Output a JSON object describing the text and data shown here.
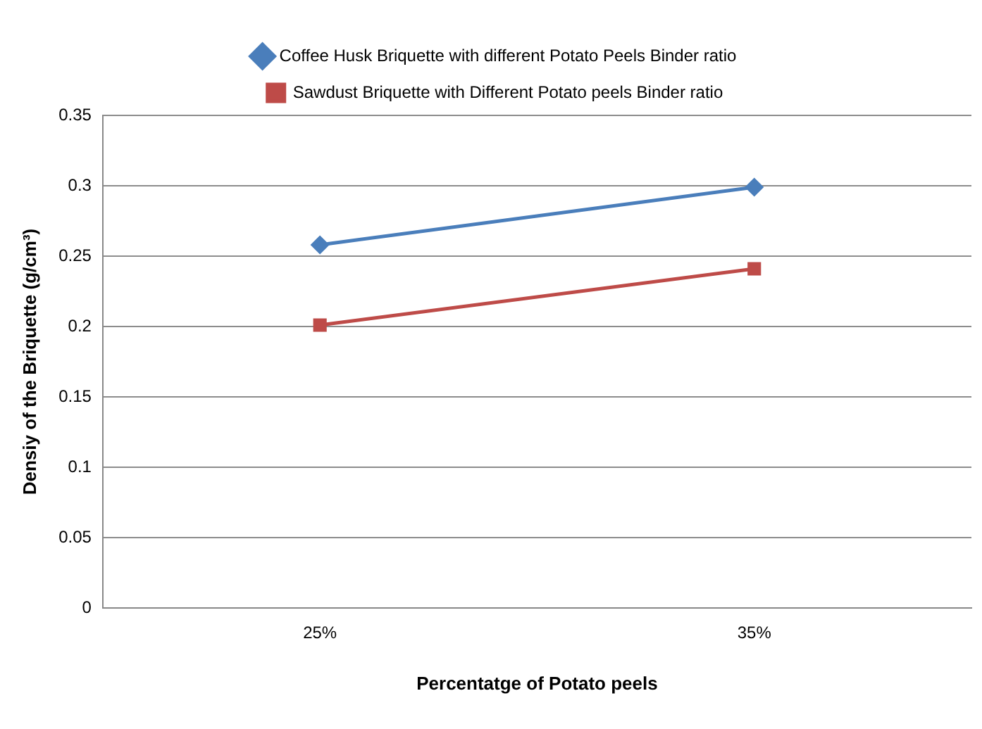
{
  "chart_data": {
    "type": "line",
    "categories": [
      "25%",
      "35%"
    ],
    "series": [
      {
        "name": "Coffee Husk Briquette with different Potato Peels Binder ratio",
        "color": "#4a7ebb",
        "values": [
          0.258,
          0.299
        ],
        "marker": "diamond"
      },
      {
        "name": "Sawdust Briquette with Different Potato peels Binder ratio",
        "color": "#be4b48",
        "values": [
          0.201,
          0.241
        ],
        "marker": "square"
      }
    ],
    "xlabel": "Percentatge of Potato peels",
    "ylabel": "Densiy of the Briquette (g/cm³)",
    "ylim": [
      0,
      0.35
    ],
    "yticks": [
      0,
      0.05,
      0.1,
      0.15,
      0.2,
      0.25,
      0.3,
      0.35
    ],
    "grid": "y",
    "legend": "top"
  }
}
